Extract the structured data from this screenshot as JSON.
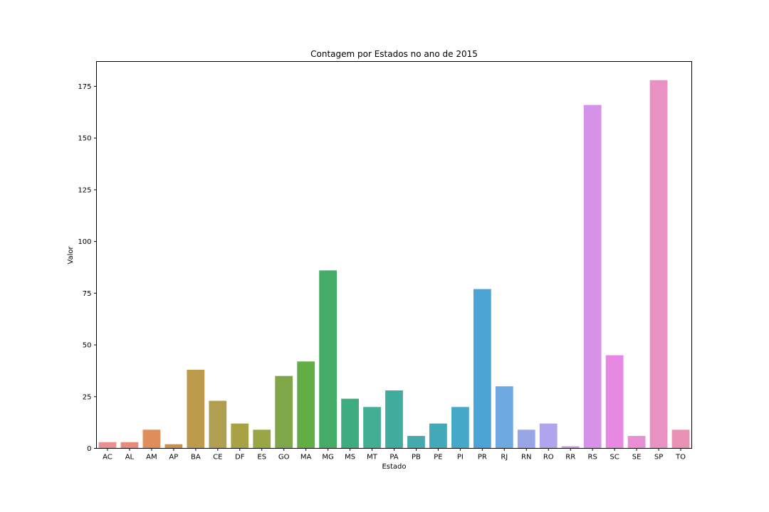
{
  "chart_data": {
    "type": "bar",
    "title": "Contagem por Estados no ano de 2015",
    "xlabel": "Estado",
    "ylabel": "Valor",
    "ylim": [
      0,
      187
    ],
    "yticks": [
      0,
      25,
      50,
      75,
      100,
      125,
      150,
      175
    ],
    "grid": false,
    "legend": "none",
    "categories": [
      "AC",
      "AL",
      "AM",
      "AP",
      "BA",
      "CE",
      "DF",
      "ES",
      "GO",
      "MA",
      "MG",
      "MS",
      "MT",
      "PA",
      "PB",
      "PE",
      "PI",
      "PR",
      "RJ",
      "RN",
      "RO",
      "RR",
      "RS",
      "SC",
      "SE",
      "SP",
      "TO"
    ],
    "values": [
      3,
      3,
      9,
      2,
      38,
      23,
      12,
      9,
      35,
      42,
      86,
      24,
      20,
      28,
      6,
      12,
      20,
      77,
      30,
      9,
      12,
      1,
      166,
      45,
      6,
      178,
      9
    ],
    "colors": [
      "#e8918f",
      "#e78c7a",
      "#df8d5b",
      "#c99145",
      "#bd9b4c",
      "#b09f51",
      "#a8a244",
      "#9aa545",
      "#7fa648",
      "#60ae44",
      "#43ac66",
      "#3eab81",
      "#44ae95",
      "#41ab9e",
      "#44aaac",
      "#42a9b8",
      "#45a8c8",
      "#4ba4d4",
      "#6ea9e0",
      "#98a6e7",
      "#b0a4ec",
      "#cd98ea",
      "#d592e8",
      "#e789e3",
      "#e88fd3",
      "#e892c4",
      "#e892b5"
    ]
  }
}
